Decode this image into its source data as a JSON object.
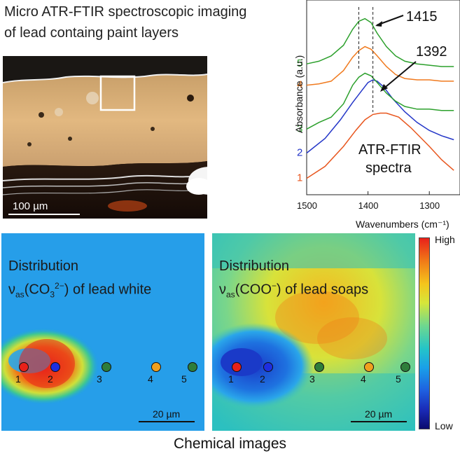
{
  "title": {
    "line1": "Micro ATR-FTIR spectroscopic imaging",
    "line2": "of lead containg  paint layers"
  },
  "micrograph": {
    "scale_bar_label": "100 µm"
  },
  "chart_data": {
    "type": "line",
    "xlabel": "Wavenumbers (cm⁻¹)",
    "ylabel": "Absorbance (a.u.)",
    "xlim": [
      1500,
      1250
    ],
    "x_ticks": [
      1500,
      1400,
      1300
    ],
    "x_reversed": true,
    "y_ticks_shown": false,
    "annotations": [
      {
        "text": "1415",
        "x": 1415
      },
      {
        "text": "1392",
        "x": 1392
      }
    ],
    "inner_label_line1": "ATR-FTIR",
    "inner_label_line2": "spectra",
    "series": [
      {
        "name": "1",
        "color": "#e8561e",
        "x": [
          1500,
          1470,
          1440,
          1420,
          1405,
          1392,
          1380,
          1370,
          1350,
          1330,
          1300,
          1280,
          1260
        ],
        "y": [
          0.06,
          0.15,
          0.3,
          0.42,
          0.5,
          0.54,
          0.55,
          0.55,
          0.52,
          0.44,
          0.3,
          0.2,
          0.12
        ]
      },
      {
        "name": "2",
        "color": "#2436c8",
        "x": [
          1500,
          1470,
          1445,
          1425,
          1410,
          1400,
          1392,
          1385,
          1375,
          1360,
          1340,
          1320,
          1300,
          1280,
          1260
        ],
        "y": [
          0.25,
          0.36,
          0.5,
          0.63,
          0.72,
          0.78,
          0.8,
          0.79,
          0.75,
          0.66,
          0.56,
          0.48,
          0.42,
          0.38,
          0.35
        ]
      },
      {
        "name": "3",
        "color": "#2ca02c",
        "x": [
          1500,
          1480,
          1460,
          1440,
          1425,
          1415,
          1405,
          1395,
          1385,
          1370,
          1355,
          1340,
          1320,
          1300,
          1280,
          1260
        ],
        "y": [
          0.43,
          0.48,
          0.52,
          0.62,
          0.76,
          0.82,
          0.85,
          0.83,
          0.78,
          0.7,
          0.64,
          0.6,
          0.58,
          0.58,
          0.57,
          0.57
        ]
      },
      {
        "name": "4",
        "color": "#f07a1e",
        "x": [
          1500,
          1480,
          1460,
          1440,
          1425,
          1415,
          1405,
          1395,
          1385,
          1370,
          1355,
          1340,
          1320,
          1300,
          1280,
          1260
        ],
        "y": [
          0.76,
          0.77,
          0.79,
          0.87,
          0.97,
          1.02,
          1.05,
          1.03,
          0.98,
          0.9,
          0.84,
          0.81,
          0.8,
          0.8,
          0.79,
          0.79
        ]
      },
      {
        "name": "5",
        "color": "#2ca02c",
        "x": [
          1500,
          1480,
          1460,
          1440,
          1425,
          1415,
          1405,
          1395,
          1385,
          1370,
          1355,
          1340,
          1320,
          1300,
          1280,
          1260
        ],
        "y": [
          0.92,
          0.94,
          0.98,
          1.06,
          1.18,
          1.24,
          1.26,
          1.23,
          1.15,
          1.05,
          0.98,
          0.94,
          0.92,
          0.91,
          0.9,
          0.9
        ]
      }
    ]
  },
  "maps": {
    "left": {
      "line1": "Distribution",
      "nu": "ν",
      "sub": "as",
      "formula_pre": "(CO",
      "formula_sub": "3",
      "formula_sup": "2−",
      "formula_post": ") of lead white",
      "scale_label": "20 µm"
    },
    "right": {
      "line1": "Distribution",
      "nu": "ν",
      "sub": "as",
      "formula_pre": "(COO",
      "formula_sup": "−",
      "formula_post": ") of lead soaps",
      "scale_label": "20 µm"
    },
    "points": [
      {
        "label": "1",
        "color": "#e8211a"
      },
      {
        "label": "2",
        "color": "#1e2ee0"
      },
      {
        "label": "3",
        "color": "#2e7d3a"
      },
      {
        "label": "4",
        "color": "#f0a01e"
      },
      {
        "label": "5",
        "color": "#2e7d3a"
      }
    ]
  },
  "colorbar": {
    "high": "High",
    "low": "Low"
  },
  "caption": "Chemical images"
}
